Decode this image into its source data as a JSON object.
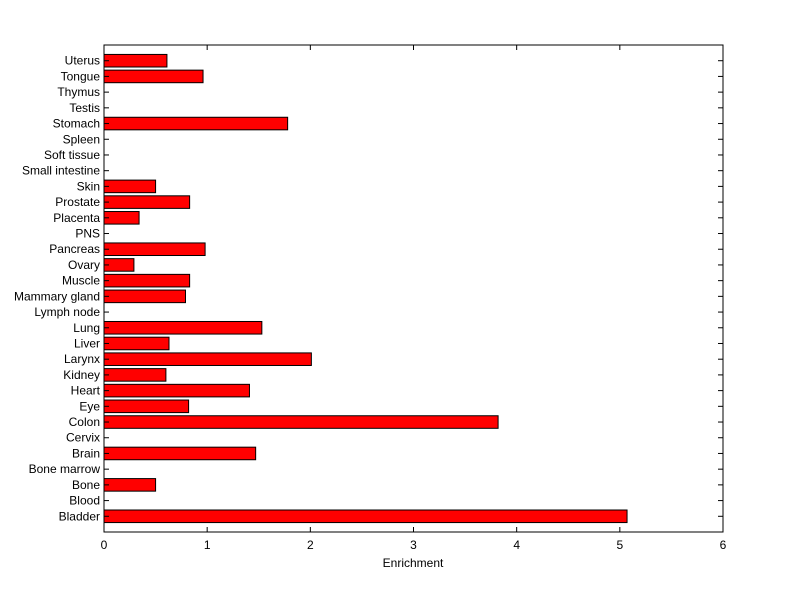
{
  "chart_data": {
    "type": "bar",
    "orientation": "horizontal",
    "title": "",
    "xlabel": "Enrichment",
    "ylabel": "",
    "xlim": [
      0,
      6
    ],
    "xticks": [
      0,
      1,
      2,
      3,
      4,
      5,
      6
    ],
    "grid": false,
    "bar_color": "#ff0000",
    "categories": [
      "Bladder",
      "Blood",
      "Bone",
      "Bone marrow",
      "Brain",
      "Cervix",
      "Colon",
      "Eye",
      "Heart",
      "Kidney",
      "Larynx",
      "Liver",
      "Lung",
      "Lymph node",
      "Mammary gland",
      "Muscle",
      "Ovary",
      "Pancreas",
      "PNS",
      "Placenta",
      "Prostate",
      "Skin",
      "Small intestine",
      "Soft tissue",
      "Spleen",
      "Stomach",
      "Testis",
      "Thymus",
      "Tongue",
      "Uterus"
    ],
    "values": [
      5.07,
      0,
      0.5,
      0,
      1.47,
      0,
      3.82,
      0.82,
      1.41,
      0.6,
      2.01,
      0.63,
      1.53,
      0,
      0.79,
      0.83,
      0.29,
      0.98,
      0,
      0.34,
      0.83,
      0.5,
      0,
      0,
      0,
      1.78,
      0,
      0,
      0.96,
      0.61
    ]
  }
}
